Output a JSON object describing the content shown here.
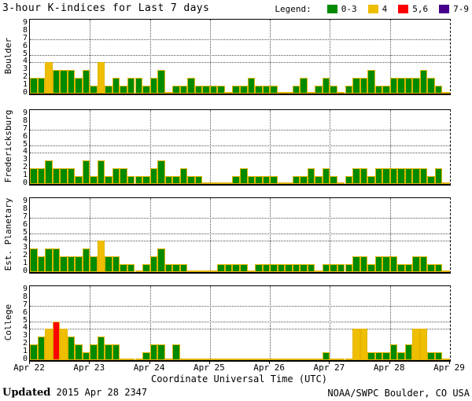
{
  "title": "3-hour K-indices for Last 7 days",
  "legend": {
    "label": "Legend:",
    "items": [
      {
        "label": "0-3",
        "color": "#008A00"
      },
      {
        "label": "4",
        "color": "#EFBE00"
      },
      {
        "label": "5,6",
        "color": "#FF0000"
      },
      {
        "label": "7-9",
        "color": "#44008C"
      }
    ]
  },
  "x_axis": {
    "day_labels": [
      "Apr 22",
      "Apr 23",
      "Apr 24",
      "Apr 25",
      "Apr 26",
      "Apr 27",
      "Apr 28",
      "Apr 29"
    ],
    "title": "Coordinate Universal Time (UTC)"
  },
  "y_axis": {
    "tick_labels": [
      "0",
      "1",
      "2",
      "3",
      "4",
      "5",
      "6",
      "7",
      "8",
      "9"
    ],
    "dotted_grid_levels": [
      4,
      5,
      7
    ],
    "range": [
      0,
      9
    ]
  },
  "footer": {
    "updated_label": "Updated",
    "updated_value": " 2015 Apr 28 2347",
    "credit": "NOAA/SWPC Boulder, CO USA"
  },
  "chart_data": {
    "type": "bar",
    "x_description": "Eight 3-hour K-index bins per day, Apr 22 through Apr 28 2015, UTC",
    "bins_per_day": 8,
    "ylim": [
      0,
      9
    ],
    "grid": "dotted horizontal lines at K=4,5,7; dotted vertical lines at day boundaries",
    "legend_position": "top-right",
    "color_rules": [
      {
        "k_max": 3,
        "color": "#008A00",
        "label": "0-3"
      },
      {
        "k_max": 4,
        "color": "#EFBE00",
        "label": "4"
      },
      {
        "k_max": 6,
        "color": "#FF0000",
        "label": "5,6"
      },
      {
        "k_max": 9,
        "color": "#44008C",
        "label": "7-9"
      }
    ],
    "bar_outline_color": "#E2B400",
    "panels": [
      {
        "name": "Boulder",
        "days": [
          [
            2,
            2,
            4,
            3,
            3,
            3,
            2,
            3
          ],
          [
            1,
            4,
            1,
            2,
            1,
            2,
            2,
            1
          ],
          [
            2,
            3,
            0,
            1,
            1,
            2,
            1,
            1
          ],
          [
            1,
            1,
            0,
            1,
            1,
            2,
            1,
            1
          ],
          [
            1,
            0,
            0,
            1,
            2,
            0,
            1,
            2
          ],
          [
            1,
            0,
            1,
            2,
            2,
            3,
            1,
            1
          ],
          [
            2,
            2,
            2,
            2,
            3,
            2,
            1,
            0
          ]
        ]
      },
      {
        "name": "Fredericksburg",
        "days": [
          [
            2,
            2,
            3,
            2,
            2,
            2,
            1,
            3
          ],
          [
            1,
            3,
            1,
            2,
            2,
            1,
            1,
            1
          ],
          [
            2,
            3,
            1,
            1,
            2,
            1,
            1,
            0
          ],
          [
            0,
            0,
            0,
            1,
            2,
            1,
            1,
            1
          ],
          [
            1,
            0,
            0,
            1,
            1,
            2,
            1,
            2
          ],
          [
            1,
            0,
            1,
            2,
            2,
            1,
            2,
            2
          ],
          [
            2,
            2,
            2,
            2,
            2,
            1,
            2,
            0
          ]
        ]
      },
      {
        "name": "Est. Planetary",
        "days": [
          [
            3,
            2,
            3,
            3,
            2,
            2,
            2,
            3
          ],
          [
            2,
            4,
            2,
            2,
            1,
            1,
            0,
            1
          ],
          [
            2,
            3,
            1,
            1,
            1,
            0,
            0,
            0
          ],
          [
            0,
            1,
            1,
            1,
            1,
            0,
            1,
            1
          ],
          [
            1,
            1,
            1,
            1,
            1,
            1,
            0,
            1
          ],
          [
            1,
            1,
            1,
            2,
            2,
            1,
            2,
            2
          ],
          [
            2,
            1,
            1,
            2,
            2,
            1,
            1,
            0
          ]
        ]
      },
      {
        "name": "College",
        "days": [
          [
            2,
            3,
            4,
            5,
            4,
            3,
            2,
            1
          ],
          [
            2,
            3,
            2,
            2,
            0,
            0,
            0,
            1
          ],
          [
            2,
            2,
            0,
            2,
            0,
            0,
            0,
            0
          ],
          [
            0,
            0,
            0,
            0,
            0,
            0,
            0,
            0
          ],
          [
            0,
            0,
            0,
            0,
            0,
            0,
            0,
            1
          ],
          [
            0,
            0,
            0,
            4,
            4,
            1,
            1,
            1
          ],
          [
            2,
            1,
            2,
            4,
            4,
            1,
            1,
            0
          ]
        ]
      }
    ]
  }
}
